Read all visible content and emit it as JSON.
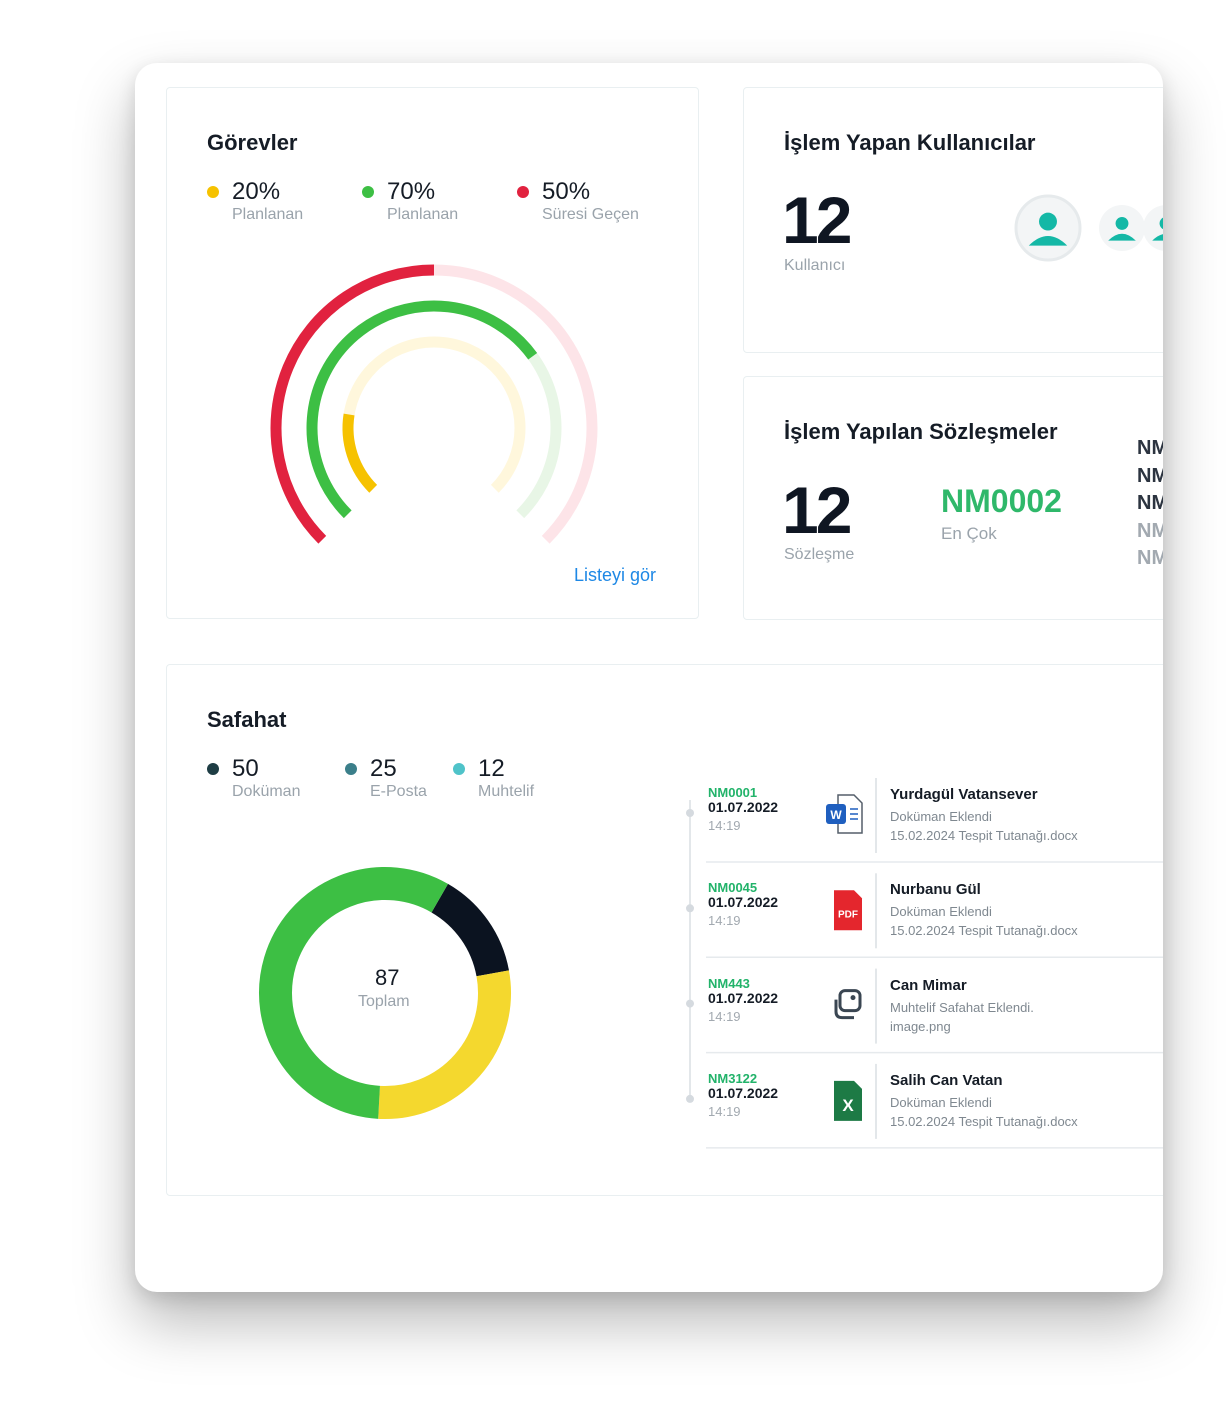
{
  "gorevler": {
    "title": "Görevler",
    "legend": [
      {
        "value": 20,
        "value_label": "20%",
        "label": "Planlanan",
        "color": "#f6c200",
        "track": "#fff7dc"
      },
      {
        "value": 70,
        "value_label": "70%",
        "label": "Planlanan",
        "color": "#3dbf44",
        "track": "#e8f6e6"
      },
      {
        "value": 50,
        "value_label": "50%",
        "label": "Süresi Geçen",
        "color": "#e1223f",
        "track": "#fde4e8"
      }
    ],
    "link": "Listeyi gör"
  },
  "kullanicilar": {
    "title": "İşlem Yapan Kullanıcılar",
    "count": 12,
    "count_label": "Kullanıcı"
  },
  "sozlesmeler": {
    "title": "İşlem Yapılan Sözleşmeler",
    "count": 12,
    "count_label": "Sözleşme",
    "top": "NM0002",
    "top_label": "En Çok",
    "list": [
      "NM",
      "NM",
      "NM",
      "NM",
      "NM"
    ]
  },
  "safahat": {
    "title": "Safahat",
    "legend": [
      {
        "value": 50,
        "label": "Doküman",
        "color": "#1e3d44",
        "arc_color": "#3dbf44"
      },
      {
        "value": 25,
        "label": "E-Posta",
        "color": "#3b7f8a",
        "arc_color": "#f4d82e"
      },
      {
        "value": 12,
        "label": "Muhtelif",
        "color": "#4fc3c9",
        "arc_color": "#0b1320"
      }
    ],
    "total": 87,
    "total_label": "Toplam",
    "timeline": [
      {
        "code": "NM0001",
        "date": "01.07.2022",
        "time": "14:19",
        "icon_text": "W",
        "name": "Yurdagül Vatansever",
        "action": "Doküman Eklendi",
        "file": "15.02.2024 Tespit Tutanağı.docx"
      },
      {
        "code": "NM0045",
        "date": "01.07.2022",
        "time": "14:19",
        "icon_text": "PDF",
        "name": "Nurbanu Gül",
        "action": "Doküman Eklendi",
        "file": "15.02.2024 Tespit Tutanağı.docx"
      },
      {
        "code": "NM443",
        "date": "01.07.2022",
        "time": "14:19",
        "name": "Can Mimar",
        "action": "Muhtelif Safahat Eklendi.",
        "file": "image.png"
      },
      {
        "code": "NM3122",
        "date": "01.07.2022",
        "time": "14:19",
        "icon_text": "X",
        "name": "Salih Can Vatan",
        "action": "Doküman Eklendi",
        "file": "15.02.2024 Tespit Tutanağı.docx"
      }
    ]
  }
}
